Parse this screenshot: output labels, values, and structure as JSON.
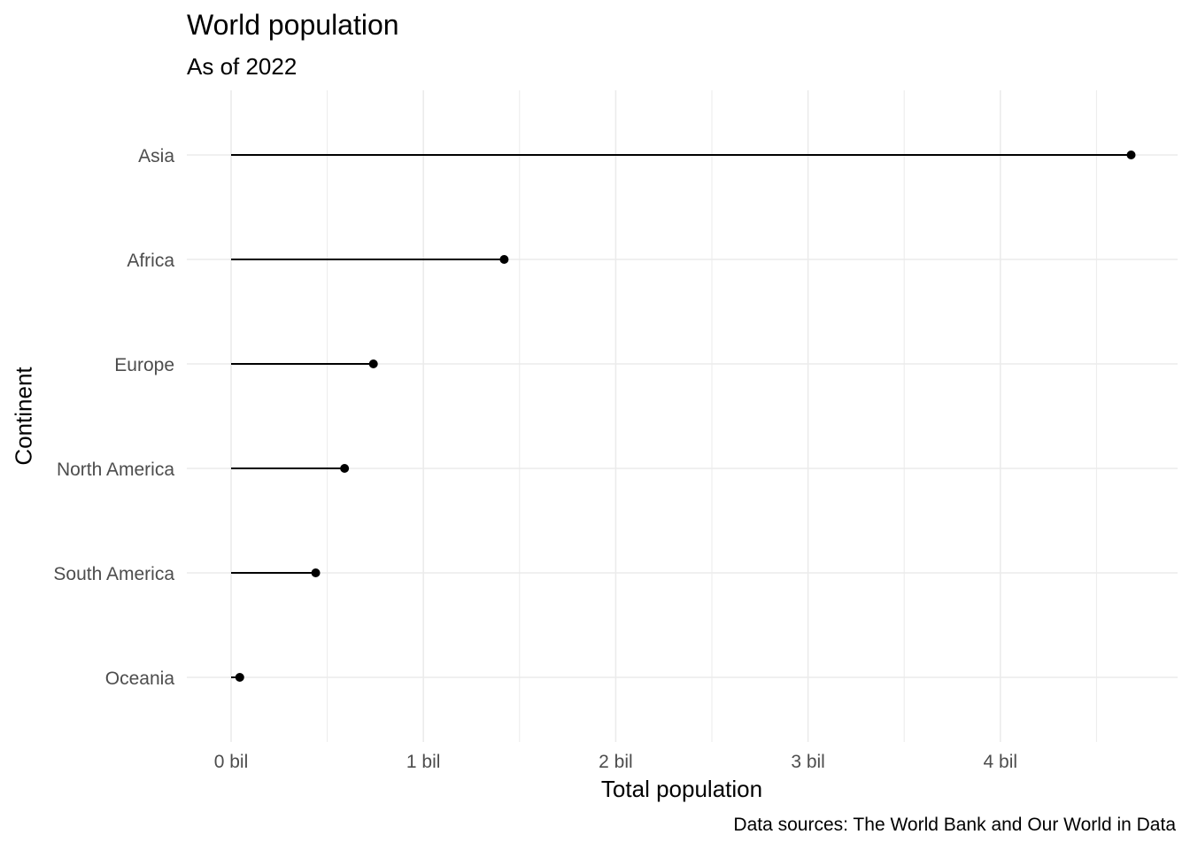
{
  "chart_data": {
    "type": "lollipop",
    "title": "World population",
    "subtitle": "As of 2022",
    "xlabel": "Total population",
    "ylabel": "Continent",
    "caption": "Data sources: The World Bank and Our World in Data",
    "categories": [
      "Asia",
      "Africa",
      "Europe",
      "North America",
      "South America",
      "Oceania"
    ],
    "values": [
      4.68,
      1.42,
      0.74,
      0.59,
      0.44,
      0.045
    ],
    "value_unit": "billion",
    "xlim": [
      0,
      4.75
    ],
    "x_ticks": [
      0,
      1,
      2,
      3,
      4
    ],
    "x_tick_labels": [
      "0 bil",
      "1 bil",
      "2 bil",
      "3 bil",
      "4 bil"
    ],
    "grid": true,
    "colors": {
      "mark": "#000000",
      "grid": "#ebebeb",
      "tick_text": "#4d4d4d"
    }
  }
}
